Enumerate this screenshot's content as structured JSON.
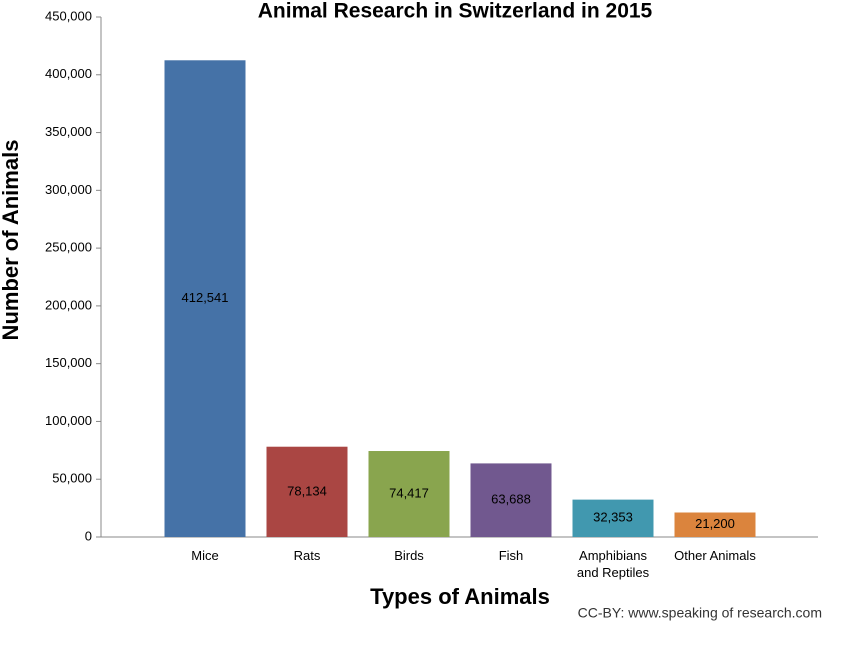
{
  "chart_data": {
    "type": "bar",
    "title": "Animal Research in Switzerland in 2015",
    "x_label": "Types of Animals",
    "y_label": "Number of Animals",
    "credit": "CC-BY: www.speaking of research.com",
    "categories": [
      "Mice",
      "Rats",
      "Birds",
      "Fish",
      "Amphibians and Reptiles",
      "Other Animals"
    ],
    "values": [
      412541,
      78134,
      74417,
      63688,
      32353,
      21200
    ],
    "value_labels": [
      "412,541",
      "78,134",
      "74,417",
      "63,688",
      "32,353",
      "21,200"
    ],
    "colors": [
      "#4572a7",
      "#aa4643",
      "#89a54e",
      "#71588f",
      "#4198af",
      "#db843d"
    ],
    "ylim": [
      0,
      450000
    ],
    "yticks": [
      0,
      {
        "value": 50000,
        "label": "50,000"
      },
      {
        "value": 100000,
        "label": "100,000"
      },
      {
        "value": 150000,
        "label": "150,000"
      },
      {
        "value": 200000,
        "label": "200,000"
      },
      {
        "value": 250000,
        "label": "250,000"
      },
      {
        "value": 300000,
        "label": "300,000"
      },
      {
        "value": 350000,
        "label": "350,000"
      },
      {
        "value": 400000,
        "label": "400,000"
      },
      {
        "value": 450000,
        "label": "450,000"
      }
    ],
    "grid": false
  }
}
